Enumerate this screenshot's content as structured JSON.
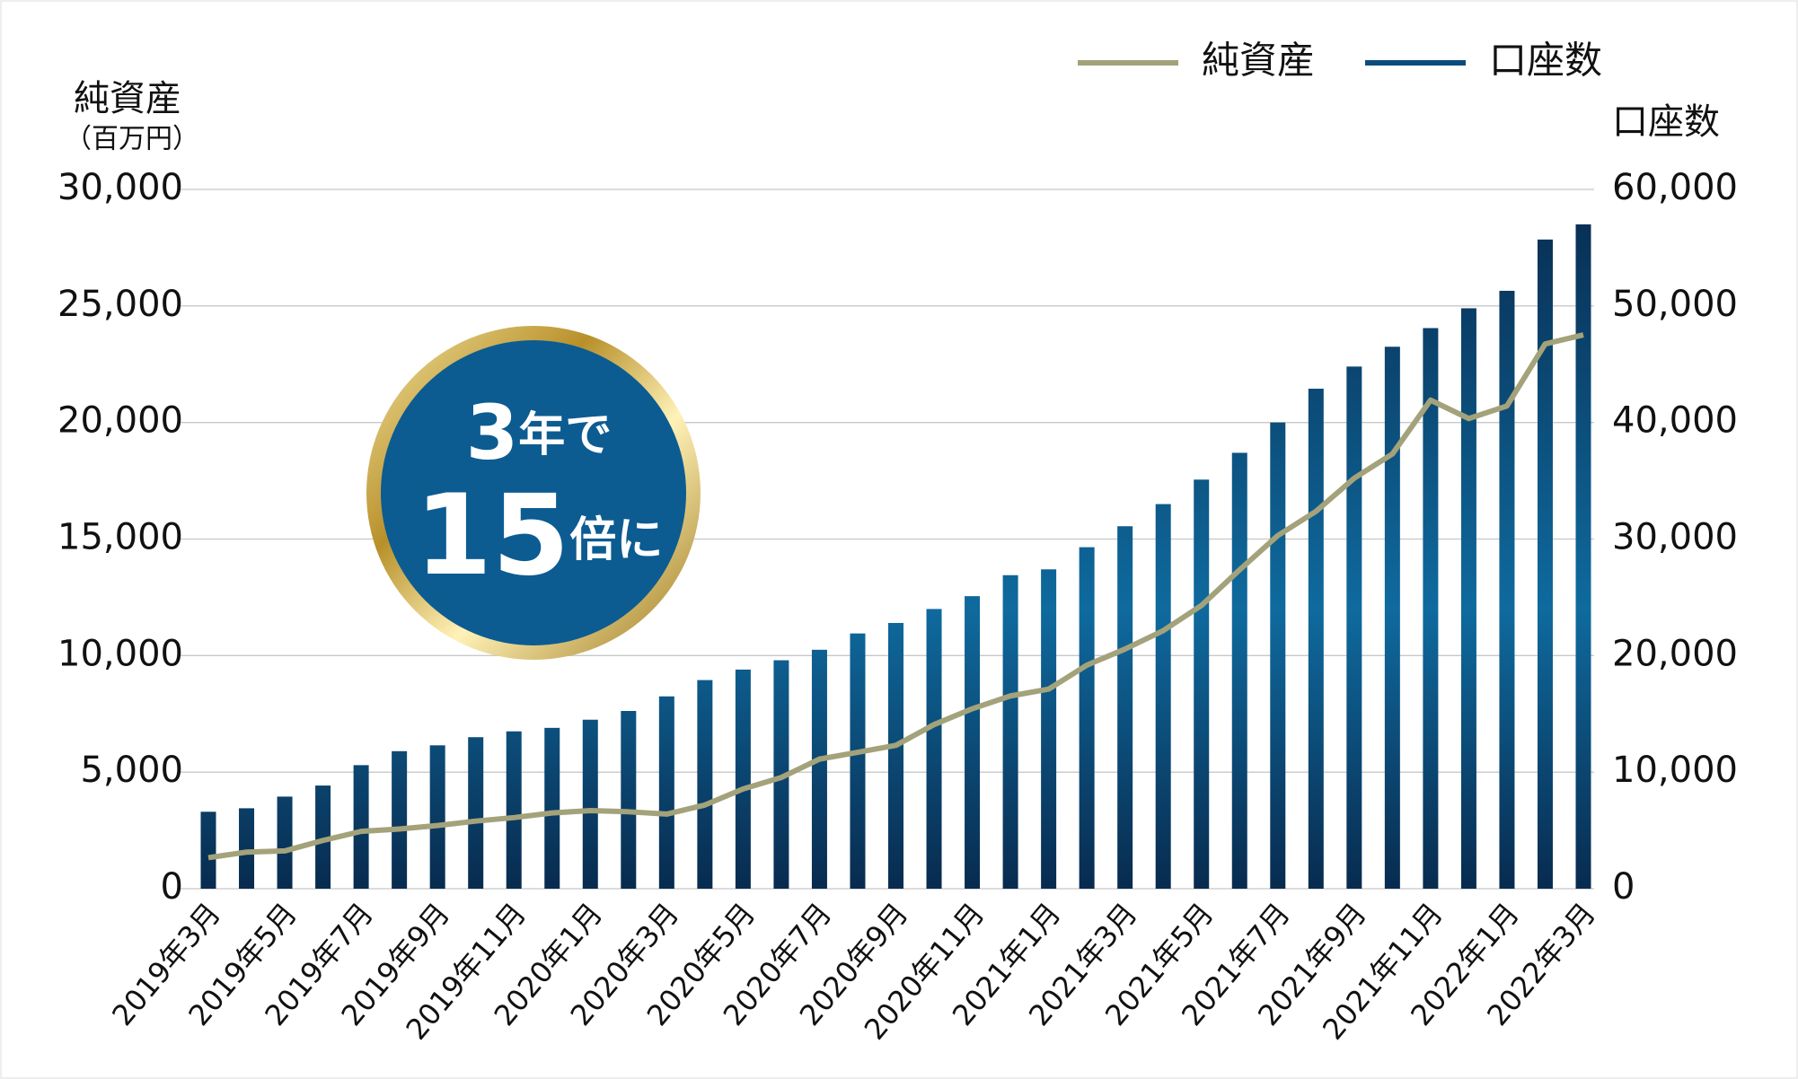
{
  "chart_data": {
    "type": "bar-line",
    "y_label": "純資産",
    "y_unit": "（百万円）",
    "y2_label": "口座数",
    "annotation": [
      {
        "number": "3",
        "text": "年で"
      },
      {
        "number": "15",
        "text": "倍に"
      }
    ],
    "categories": [
      "2019年3月",
      null,
      "2019年5月",
      null,
      "2019年7月",
      null,
      "2019年9月",
      null,
      "2019年11月",
      null,
      "2020年1月",
      null,
      "2020年3月",
      null,
      "2020年5月",
      null,
      "2020年7月",
      null,
      "2020年9月",
      null,
      "2020年11月",
      null,
      "2021年1月",
      null,
      "2021年3月",
      null,
      "2021年5月",
      null,
      "2021年7月",
      null,
      "2021年9月",
      null,
      "2021年11月",
      null,
      "2022年1月",
      null,
      "2022年3月"
    ],
    "series": [
      {
        "name": "純資産",
        "type": "line",
        "axis": "y",
        "color": "#a3a27a",
        "values": [
          1330,
          1570,
          1620,
          2070,
          2460,
          2560,
          2710,
          2900,
          3050,
          3250,
          3350,
          3300,
          3200,
          3590,
          4280,
          4770,
          5560,
          5850,
          6150,
          7040,
          7720,
          8270,
          8560,
          9590,
          10280,
          11070,
          12150,
          13680,
          15150,
          16190,
          17610,
          18650,
          20960,
          20170,
          20710,
          23370,
          23760
        ]
      },
      {
        "name": "口座数",
        "type": "bar",
        "axis": "y2",
        "color": "#0b4c7c",
        "values": [
          6600,
          6900,
          7900,
          8850,
          10600,
          11800,
          12300,
          13000,
          13500,
          13800,
          14500,
          15250,
          16500,
          17900,
          18800,
          19600,
          20500,
          21900,
          22800,
          24000,
          25100,
          26900,
          27400,
          29300,
          31100,
          33000,
          35100,
          37400,
          40000,
          42900,
          44800,
          46500,
          48100,
          49800,
          51300,
          55700,
          57000
        ]
      }
    ],
    "ylim": [
      0,
      30000
    ],
    "yticks": [
      0,
      {
        "value": 5000,
        "label": "5,000"
      },
      {
        "value": 10000,
        "label": "10,000"
      },
      {
        "value": 15000,
        "label": "15,000"
      },
      {
        "value": 20000,
        "label": "20,000"
      },
      {
        "value": 25000,
        "label": "25,000"
      },
      {
        "value": 30000,
        "label": "30,000"
      }
    ],
    "y2lim": [
      0,
      60000
    ],
    "y2ticks": [
      0,
      {
        "value": 10000,
        "label": "10,000"
      },
      {
        "value": 20000,
        "label": "20,000"
      },
      {
        "value": 30000,
        "label": "30,000"
      },
      {
        "value": 40000,
        "label": "40,000"
      },
      {
        "value": 50000,
        "label": "50,000"
      },
      {
        "value": 60000,
        "label": "60,000"
      }
    ],
    "grid": true,
    "legend": "top-right"
  }
}
